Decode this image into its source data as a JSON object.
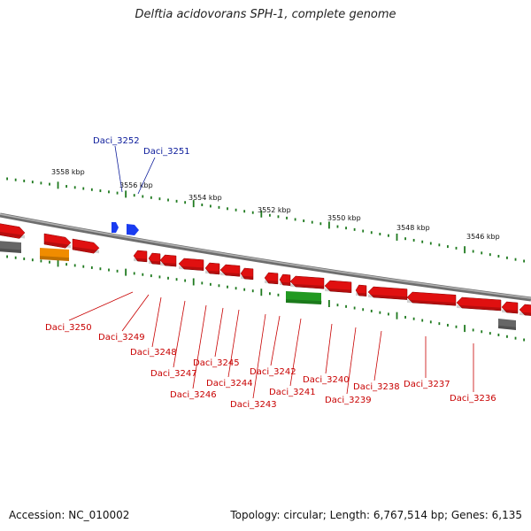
{
  "title": "Delftia acidovorans SPH-1, complete genome",
  "footer": {
    "accession": "Accession: NC_010002",
    "summary": "Topology: circular; Length: 6,767,514 bp; Genes: 6,135"
  },
  "colors": {
    "forward_gene": "#e01010",
    "reverse_gene": "#e01010",
    "rna_gene": "#1a3cf0",
    "backbone": "#8a8a8a",
    "tick": "#1f7a1f",
    "label_forward": "#0a1a9a",
    "label_reverse": "#c80000",
    "orange": "#f08c00",
    "green": "#229922",
    "gray": "#666666"
  },
  "ticks": [
    "3558 kbp",
    "3556 kbp",
    "3554 kbp",
    "3552 kbp",
    "3550 kbp",
    "3548 kbp",
    "3546 kbp"
  ],
  "genes_top": [
    "Daci_3252",
    "Daci_3251"
  ],
  "genes_bottom": [
    "Daci_3250",
    "Daci_3249",
    "Daci_3248",
    "Daci_3247",
    "Daci_3246",
    "Daci_3245",
    "Daci_3244",
    "Daci_3243",
    "Daci_3242",
    "Daci_3241",
    "Daci_3240",
    "Daci_3239",
    "Daci_3238",
    "Daci_3237",
    "Daci_3236"
  ]
}
